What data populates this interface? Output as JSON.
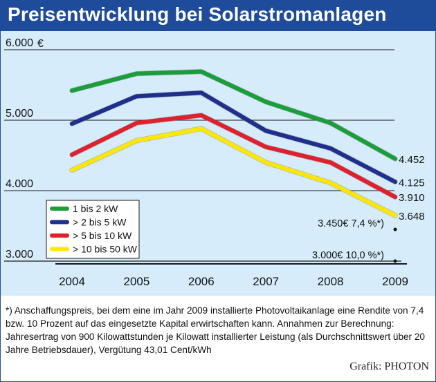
{
  "title": "Preisentwicklung bei Solarstromanlagen",
  "chart_data": {
    "type": "line",
    "title": "Preisentwicklung bei Solarstromanlagen",
    "ylabel": "€",
    "ylim": [
      3000,
      6000
    ],
    "yticks": [
      "3.000",
      "4.000",
      "5.000",
      "6.000"
    ],
    "categories": [
      "2004",
      "2005",
      "2006",
      "2007",
      "2008",
      "2009"
    ],
    "series": [
      {
        "name": "1 bis 2 kW",
        "color": "#1a9e3a",
        "values": [
          5420,
          5660,
          5690,
          5260,
          4960,
          4452
        ],
        "end_label": "4.452"
      },
      {
        "name": "> 2 bis 5 kW",
        "color": "#1e2f8c",
        "values": [
          4950,
          5340,
          5390,
          4850,
          4600,
          4125
        ],
        "end_label": "4.125"
      },
      {
        "name": "> 5 bis 10 kW",
        "color": "#e0202a",
        "values": [
          4510,
          4960,
          5070,
          4620,
          4400,
          3910
        ],
        "end_label": "3.910"
      },
      {
        "name": "> 10 bis 50 kW",
        "color": "#ffe800",
        "values": [
          4290,
          4710,
          4880,
          4400,
          4110,
          3648
        ],
        "end_label": "3.648"
      }
    ],
    "annotations": [
      {
        "text": "3.450€  7,4 %*)",
        "x": "2009",
        "y": 3450
      },
      {
        "text": "3.000€ 10,0 %*)",
        "x": "2009",
        "y": 3000
      }
    ],
    "legend": "bottom-left",
    "grid": true
  },
  "footnote": "*) Anschaffungspreis, bei dem eine im Jahr 2009 installierte Photovoltaikanlage eine Rendite von 7,4 bzw. 10 Prozent auf das eingesetzte Kapital erwirtschaften kann. Annahmen zur Berechnung: Jahresertrag von 900 Kilowattstunden je Kilowatt installierter Leistung (als Durchschnittswert über 20 Jahre Betriebsdauer), Vergütung 43,01 Cent/kWh",
  "credit": "Grafik: PHOTON"
}
